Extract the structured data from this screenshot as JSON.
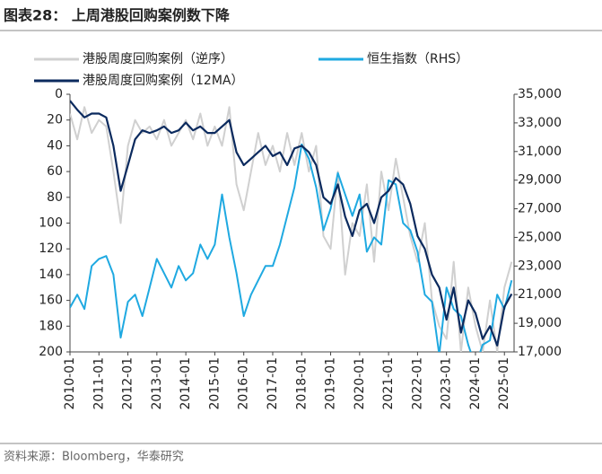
{
  "chart_data": {
    "type": "line",
    "title": "图表28： 上周港股回购案例数下降",
    "source": "资料来源：Bloomberg，华泰研究",
    "x": [
      "2010-01",
      "2010-04",
      "2010-07",
      "2010-10",
      "2011-01",
      "2011-04",
      "2011-07",
      "2011-10",
      "2012-01",
      "2012-04",
      "2012-07",
      "2012-10",
      "2013-01",
      "2013-04",
      "2013-07",
      "2013-10",
      "2014-01",
      "2014-04",
      "2014-07",
      "2014-10",
      "2015-01",
      "2015-04",
      "2015-07",
      "2015-10",
      "2016-01",
      "2016-04",
      "2016-07",
      "2016-10",
      "2017-01",
      "2017-04",
      "2017-07",
      "2017-10",
      "2018-01",
      "2018-04",
      "2018-07",
      "2018-10",
      "2019-01",
      "2019-04",
      "2019-07",
      "2019-10",
      "2020-01",
      "2020-04",
      "2020-07",
      "2020-10",
      "2021-01",
      "2021-04",
      "2021-07",
      "2021-10",
      "2022-01",
      "2022-04",
      "2022-07",
      "2022-10",
      "2023-01",
      "2023-04",
      "2023-07",
      "2023-10",
      "2024-01",
      "2024-04",
      "2024-07",
      "2024-10",
      "2025-01",
      "2025-04"
    ],
    "xlim": [
      "2010-01",
      "2025-05"
    ],
    "xticks": [
      "2010-01",
      "2011-01",
      "2012-01",
      "2013-01",
      "2014-01",
      "2015-01",
      "2016-01",
      "2017-01",
      "2018-01",
      "2019-01",
      "2020-01",
      "2021-01",
      "2022-01",
      "2023-01",
      "2024-01",
      "2025-01"
    ],
    "ylim": [
      0,
      200
    ],
    "y_inverted": true,
    "yticks": [
      0,
      20,
      40,
      60,
      80,
      100,
      120,
      140,
      160,
      180,
      200
    ],
    "y2lim": [
      17000,
      35000
    ],
    "y2ticks": [
      {
        "value": 17000,
        "label": "17,000"
      },
      {
        "value": 19000,
        "label": "19,000"
      },
      {
        "value": 21000,
        "label": "21,000"
      },
      {
        "value": 23000,
        "label": "23,000"
      },
      {
        "value": 25000,
        "label": "25,000"
      },
      {
        "value": 27000,
        "label": "27,000"
      },
      {
        "value": 29000,
        "label": "29,000"
      },
      {
        "value": 31000,
        "label": "31,000"
      },
      {
        "value": 33000,
        "label": "33,000"
      },
      {
        "value": 35000,
        "label": "35,000"
      }
    ],
    "series": [
      {
        "name": "港股周度回购案例（逆序）",
        "color": "#d0d0d0",
        "values": [
          15,
          35,
          10,
          30,
          20,
          25,
          60,
          100,
          40,
          20,
          30,
          25,
          35,
          20,
          40,
          30,
          20,
          35,
          15,
          40,
          25,
          40,
          10,
          70,
          90,
          60,
          30,
          55,
          40,
          60,
          30,
          55,
          30,
          60,
          40,
          110,
          120,
          60,
          140,
          100,
          110,
          70,
          130,
          60,
          90,
          50,
          80,
          110,
          130,
          100,
          160,
          180,
          190,
          130,
          200,
          150,
          180,
          200,
          160,
          200,
          150,
          130
        ]
      },
      {
        "name": "恒生指数（RHS）",
        "color": "#1fa9e1",
        "axis": "y2",
        "values": [
          20100,
          21000,
          20000,
          23000,
          23500,
          23700,
          22400,
          18000,
          20500,
          21000,
          19500,
          21500,
          23500,
          22500,
          21500,
          23000,
          22000,
          22500,
          24500,
          23500,
          24500,
          28000,
          25000,
          22500,
          19500,
          21000,
          22000,
          23000,
          23000,
          24500,
          26500,
          28500,
          31500,
          30500,
          28500,
          25500,
          27000,
          29500,
          28000,
          26500,
          28000,
          24000,
          25000,
          24500,
          29000,
          28700,
          26000,
          25500,
          24000,
          21000,
          20500,
          16800,
          21500,
          20000,
          19500,
          17500,
          16000,
          17500,
          17800,
          21000,
          20000,
          22000
        ]
      },
      {
        "name": "港股周度回购案例（12MA）",
        "color": "#0b2a5e",
        "values": [
          5,
          12,
          18,
          15,
          15,
          18,
          40,
          75,
          55,
          35,
          28,
          30,
          28,
          25,
          30,
          28,
          22,
          28,
          25,
          30,
          30,
          25,
          20,
          45,
          55,
          50,
          45,
          40,
          48,
          45,
          55,
          42,
          40,
          45,
          55,
          80,
          85,
          70,
          95,
          110,
          90,
          85,
          100,
          80,
          75,
          65,
          70,
          85,
          110,
          120,
          140,
          150,
          175,
          150,
          185,
          160,
          170,
          190,
          180,
          195,
          165,
          155
        ]
      }
    ]
  }
}
